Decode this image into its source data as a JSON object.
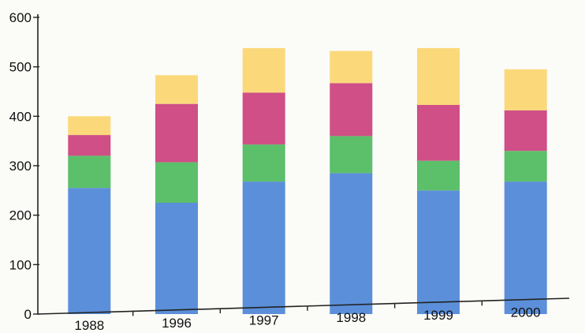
{
  "chart_data": {
    "type": "bar",
    "stacked": true,
    "title": "",
    "xlabel": "",
    "ylabel": "",
    "ylim": [
      0,
      600
    ],
    "yticks": [
      0,
      100,
      200,
      300,
      400,
      500,
      600
    ],
    "categories": [
      "1988",
      "1996",
      "1997",
      "1998",
      "1999",
      "2000"
    ],
    "grid": false,
    "legend": "none",
    "series": [
      {
        "color": "#5b8fd9",
        "values": [
          255,
          225,
          268,
          285,
          250,
          268
        ]
      },
      {
        "color": "#5cbf6a",
        "values": [
          65,
          82,
          75,
          75,
          60,
          62
        ]
      },
      {
        "color": "#cf4f86",
        "values": [
          42,
          118,
          105,
          107,
          113,
          82
        ]
      },
      {
        "color": "#fbd97a",
        "values": [
          38,
          58,
          90,
          65,
          115,
          83
        ]
      }
    ]
  }
}
